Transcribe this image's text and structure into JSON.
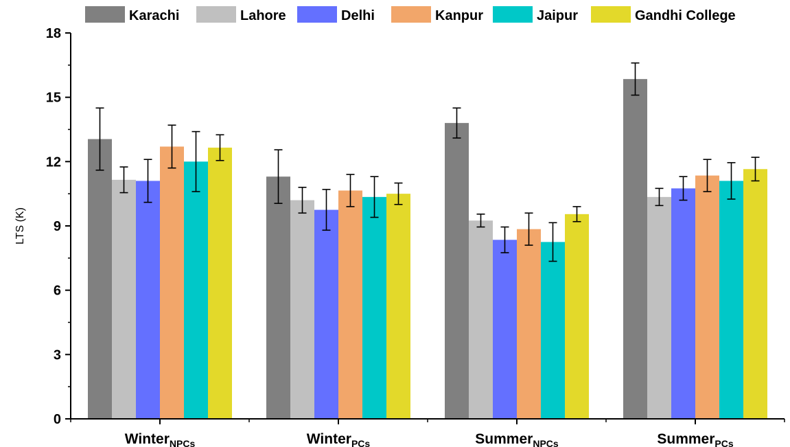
{
  "chart_data": {
    "type": "bar",
    "ylabel": "LTS (K)",
    "ylim": [
      0,
      18
    ],
    "yticks": [
      0,
      3,
      6,
      9,
      12,
      15,
      18
    ],
    "grid": false,
    "legend_position": "top",
    "categories": [
      {
        "main": "Winter",
        "sub": "NPCs"
      },
      {
        "main": "Winter",
        "sub": "PCs"
      },
      {
        "main": "Summer",
        "sub": "NPCs"
      },
      {
        "main": "Summer",
        "sub": "PCs"
      }
    ],
    "series": [
      {
        "name": "Karachi",
        "color": "#808080",
        "values": [
          13.05,
          11.3,
          13.8,
          15.85
        ],
        "errors": [
          1.45,
          1.25,
          0.7,
          0.75
        ]
      },
      {
        "name": "Lahore",
        "color": "#c0c0c0",
        "values": [
          11.15,
          10.2,
          9.25,
          10.35
        ],
        "errors": [
          0.6,
          0.6,
          0.3,
          0.4
        ]
      },
      {
        "name": "Delhi",
        "color": "#6470ff",
        "values": [
          11.1,
          9.75,
          8.35,
          10.75
        ],
        "errors": [
          1.0,
          0.95,
          0.6,
          0.55
        ]
      },
      {
        "name": "Kanpur",
        "color": "#f2a66a",
        "values": [
          12.7,
          10.65,
          8.85,
          11.35
        ],
        "errors": [
          1.0,
          0.75,
          0.75,
          0.75
        ]
      },
      {
        "name": "Jaipur",
        "color": "#00c8c8",
        "values": [
          12.0,
          10.35,
          8.25,
          11.1
        ],
        "errors": [
          1.4,
          0.95,
          0.9,
          0.85
        ]
      },
      {
        "name": "Gandhi College",
        "color": "#e3d92a",
        "values": [
          12.65,
          10.5,
          9.55,
          11.65
        ],
        "errors": [
          0.6,
          0.5,
          0.35,
          0.55
        ]
      }
    ]
  }
}
